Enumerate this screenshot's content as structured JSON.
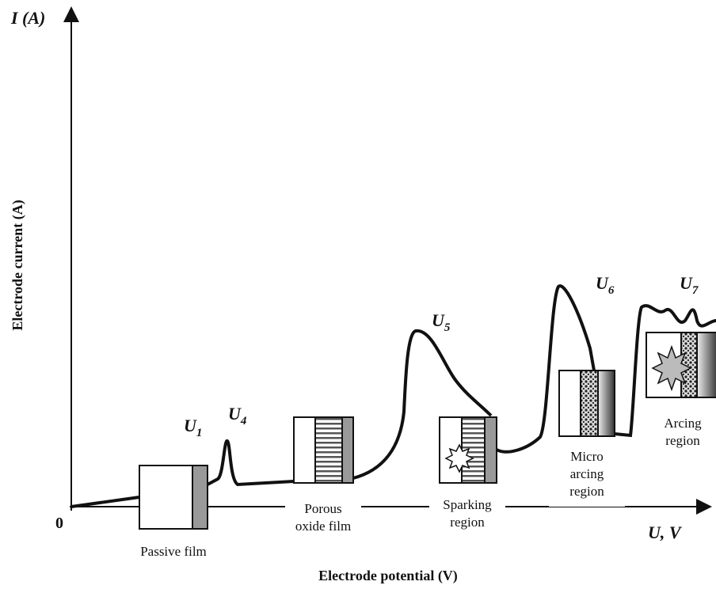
{
  "axes": {
    "y_symbol": "I (A)",
    "y_label": "Electrode current (A)",
    "origin": "0",
    "x_symbol": "U, V",
    "x_label": "Electrode potential (V)"
  },
  "markers": [
    {
      "main": "U",
      "sub": "1"
    },
    {
      "main": "U",
      "sub": "4"
    },
    {
      "main": "U",
      "sub": "5"
    },
    {
      "main": "U",
      "sub": "6"
    },
    {
      "main": "U",
      "sub": "7"
    }
  ],
  "regions": [
    {
      "lines": [
        "Passive film"
      ]
    },
    {
      "lines": [
        "Porous",
        "oxide film"
      ]
    },
    {
      "lines": [
        "Sparking",
        "region"
      ]
    },
    {
      "lines": [
        "Micro",
        "arcing",
        "region"
      ]
    },
    {
      "lines": [
        "Arcing",
        "region"
      ]
    }
  ]
}
